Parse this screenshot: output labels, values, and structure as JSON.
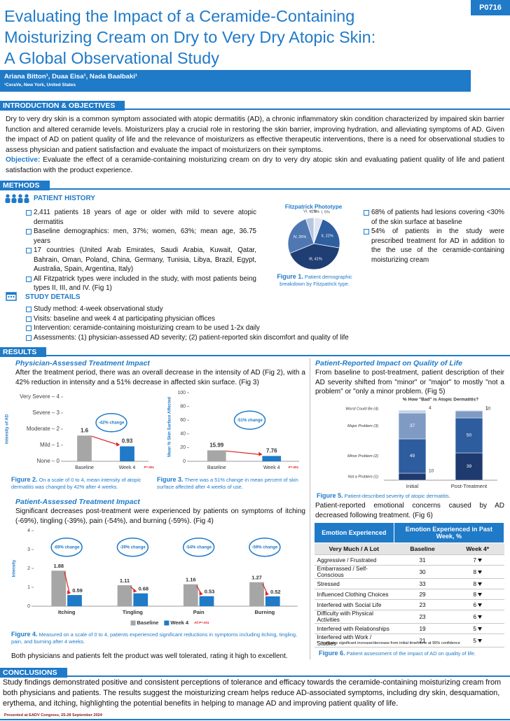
{
  "header": {
    "code": "P0716",
    "title_lines": [
      "Evaluating the Impact of a Ceramide-Containing",
      "Moisturizing Cream on Dry to Very Dry Atopic Skin:",
      "A Global Observational Study"
    ],
    "authors": "Ariana Bitton¹, Duaa Eisa¹, Nada Baalbaki¹",
    "affiliation": "¹CeraVe, New York, United States"
  },
  "intro": {
    "heading": "INTRODUCTION & OBJECTIVES",
    "text": "Dry to very dry skin is a common symptom associated with atopic dermatitis (AD), a chronic inflammatory skin condition characterized by impaired skin barrier function and altered ceramide levels. Moisturizers play a crucial role in restoring the skin barrier, improving hydration, and alleviating symptoms of AD. Given the impact of AD on patient quality of life and the relevance of moisturizers as effective therapeutic interventions, there is a need for observational studies to assess physician and patient satisfaction and evaluate the impact of moisturizers on their symptoms.",
    "objective_label": "Objective:",
    "objective": "Evaluate the effect of a ceramide-containing moisturizing cream on dry to very dry atopic skin and evaluating patient quality of life and patient satisfaction with the product experience."
  },
  "methods": {
    "heading": "METHODS",
    "patient_history": {
      "heading": "PATIENT HISTORY",
      "bullets_left": [
        "2,411 patients 18 years of age or older with mild to severe atopic dermatitis",
        "Baseline demographics: men, 37%; women, 63%; mean age, 36.75 years",
        "17 countries (United Arab Emirates, Saudi Arabia, Kuwait, Qatar, Bahrain, Oman, Poland, China, Germany, Tunisia, Libya, Brazil, Egypt, Australia, Spain, Argentina, Italy)",
        "All Fitzpatrick types were included in the study, with most patients being types II, III, and IV. (Fig 1)"
      ],
      "bullets_right": [
        "68% of patients had lesions covering <30% of the skin surface at baseline",
        "54% of patients in the study were prescribed treatment for AD in addition to the the use of the ceramide-containing moisturizing cream"
      ],
      "figure_label": "Figure 1.",
      "figure_caption": "Patient demographic breakdown by Fitzpatrick type."
    },
    "study_details": {
      "heading": "STUDY DETAILS",
      "bullets": [
        "Study method: 4-week observational study",
        "Visits: baseline and week 4 at participating physician offices",
        "Intervention: ceramide-containing moisturizing cream to be used 1-2x daily",
        "Assessments: (1) physician-assessed AD severity; (2) patient-reported skin discomfort and quality of life"
      ]
    }
  },
  "results": {
    "heading": "RESULTS",
    "physician_title": "Physician-Assessed Treatment Impact",
    "physician_text": "After the treatment period, there was an overall decrease in the intensity of AD (Fig 2), with a 42% reduction in intensity and a 51% decrease in affected skin surface. (Fig 3)",
    "fig2_label": "Figure 2.",
    "fig2_caption": "On a scale of 0 to 4, mean intensity of atopic dermatitis was changed by 42% after 4 weeks.",
    "fig3_label": "Figure 3.",
    "fig3_caption": "There was a 51% change in mean percent of skin surface affected after 4 weeks of use.",
    "patient_title": "Patient-Assessed Treatment Impact",
    "patient_text": "Significant decreases post-treatment were experienced by patients on symptoms of itching (-69%), tingling (-39%), pain (-54%), and burning (-59%). (Fig 4)",
    "fig4_label": "Figure 4.",
    "fig4_caption": "Measured on a scale of 0 to 4, patients experienced significant reductions in symptoms including itching, tingling, pain, and burning after 4 weeks.",
    "closing": "Both physicians and patients felt the product was well tolerated, rating it high to excellent.",
    "qol_title": "Patient-Reported Impact on Quality of Life",
    "qol_text": "From baseline to post-treatment, patient description of their AD severity shifted from \"minor\" or \"major\" to mostly \"not a problem\" or \"only a minor problem. (Fig 5)",
    "fig5_label": "Figure 5.",
    "fig5_caption": "Patient-described severity of atopic dermatitis.",
    "emotional_text": "Patient-reported emotional concerns caused by AD decreased following treatment. (Fig 6)",
    "fig6_label": "Figure 6.",
    "fig6_caption": "Patient assessment of the impact of AD on quality of life."
  },
  "table": {
    "header": [
      "Emotion Experienced",
      "Emotion Experienced in Past Week, %"
    ],
    "subheader": [
      "Very Much / A Lot",
      "Baseline",
      "Week 4*"
    ],
    "rows": [
      [
        "Aggressive / Frustrated",
        31,
        7
      ],
      [
        "Embarrassed / Self-Conscious",
        30,
        8
      ],
      [
        "Stressed",
        33,
        8
      ],
      [
        "Influenced Clothing Choices",
        29,
        8
      ],
      [
        "Interfered with Social Life",
        23,
        6
      ],
      [
        "Difficulty with Physical Activities",
        23,
        6
      ],
      [
        "Interfered with Relationships",
        19,
        5
      ],
      [
        "Interfered with Work / Studies",
        21,
        5
      ]
    ],
    "footnote": "* ↓ indicates significant increase/decrease from initial timeframe at 95% confidence"
  },
  "conclusions": {
    "heading": "CONCLUSIONS",
    "text": "Study findings demonstrated positive and consistent perceptions of tolerance and efficacy towards the ceramide-containing moisturizing cream from both physicians and patients. The results suggest the moisturizing cream helps reduce AD-associated symptoms, including dry skin, desquamation, erythema, and itching, highlighting the potential benefits in helping to manage AD and improving patient quality of life."
  },
  "footer": "Presented at EADV Congress, 25-28 September 2024",
  "chart_data": [
    {
      "type": "pie",
      "title": "Fitzpatrick Phototype",
      "values": [
        0.5,
        5,
        22,
        41,
        26,
        5
      ],
      "value_labels": [
        "VI, <1%",
        "I, 5%",
        "II, 22%",
        "III, 41%",
        "IV, 26%",
        "V, 5%"
      ],
      "colors": [
        "#c9d6ea",
        "#dfe6f2",
        "#2f5f9f",
        "#1f3f74",
        "#4f78b3",
        "#b4c6e0"
      ]
    },
    {
      "type": "bar",
      "categories": [
        "Baseline",
        "Week 4"
      ],
      "values": [
        1.6,
        0.93
      ],
      "colors": [
        "#a6a6a6",
        "#1f7ac8"
      ],
      "ylabel": "Intensity of AD",
      "ylim": [
        0,
        4
      ],
      "yticks": [
        {
          "value": 0,
          "label": "None – 0"
        },
        {
          "value": 1,
          "label": "Mild – 1"
        },
        {
          "value": 2,
          "label": "Moderate – 2"
        },
        {
          "value": 3,
          "label": "Severe – 3"
        },
        {
          "value": 4,
          "label": "Very Severe – 4"
        }
      ],
      "annotation": "-42% change",
      "p_value": "P=.001"
    },
    {
      "type": "bar",
      "categories": [
        "Baseline",
        "Week 4"
      ],
      "values": [
        15.99,
        7.76
      ],
      "colors": [
        "#a6a6a6",
        "#1f7ac8"
      ],
      "ylabel": "Mean % Skin Surface Affected",
      "ylim": [
        0,
        100
      ],
      "yticks": [
        0,
        20,
        40,
        60,
        80,
        100
      ],
      "annotation": "-51% change",
      "p_value": "P=.001"
    },
    {
      "type": "bar",
      "categories": [
        "Itching",
        "Tingling",
        "Pain",
        "Burning"
      ],
      "series": [
        {
          "name": "Baseline",
          "color": "#a6a6a6",
          "values": [
            1.88,
            1.11,
            1.16,
            1.27
          ]
        },
        {
          "name": "Week 4",
          "color": "#1f7ac8",
          "values": [
            0.59,
            0.68,
            0.53,
            0.52
          ]
        }
      ],
      "ylabel": "Intensity",
      "ylim": [
        0,
        4
      ],
      "yticks": [
        0,
        1,
        2,
        3,
        4
      ],
      "annotations": [
        "-69% change",
        "-39% change",
        "-54% change",
        "-59% change"
      ],
      "p_value": "All P=.001",
      "legend": "bottom"
    },
    {
      "type": "bar",
      "stacked": true,
      "title": "% How \"Bad\" is Atopic Dermatitis?",
      "categories": [
        "Initial",
        "Post-Treatment"
      ],
      "series": [
        {
          "name": "Not a Problem (1)",
          "color": "#1f3a6e",
          "values": [
            10,
            39
          ]
        },
        {
          "name": "Minor Problem (2)",
          "color": "#2e5d9f",
          "values": [
            49,
            50
          ]
        },
        {
          "name": "Major Problem (3)",
          "color": "#7f9bc4",
          "values": [
            37,
            10
          ]
        },
        {
          "name": "Worst Could Be (4)",
          "color": "#c5d3e8",
          "values": [
            4,
            1
          ]
        }
      ],
      "ylim": [
        0,
        100
      ]
    }
  ]
}
